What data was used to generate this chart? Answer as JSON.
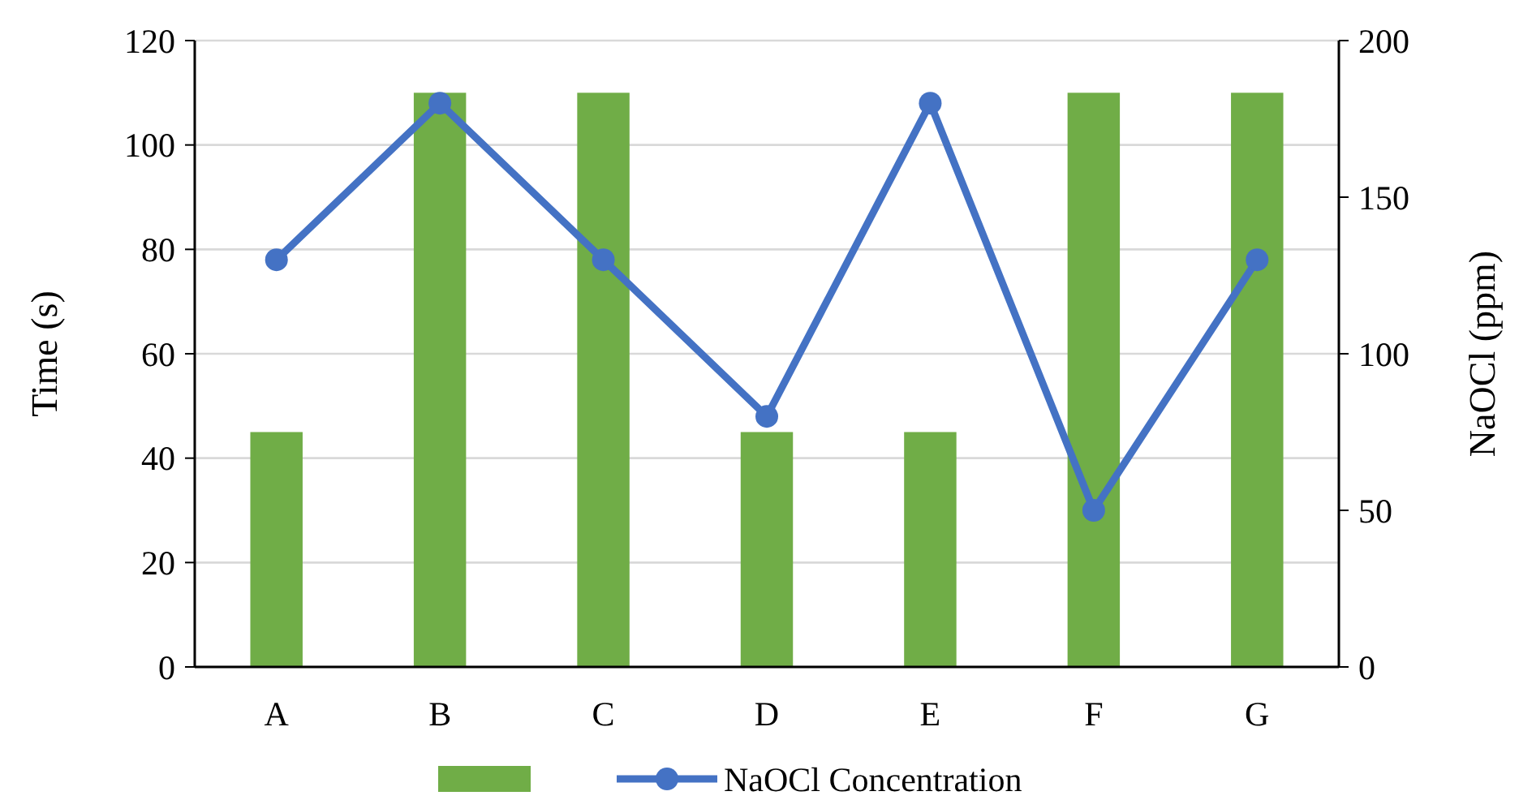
{
  "chart_data": {
    "type": "bar",
    "categories": [
      "A",
      "B",
      "C",
      "D",
      "E",
      "F",
      "G"
    ],
    "series": [
      {
        "color": "#70ad47",
        "values": [
          45,
          110,
          110,
          45,
          45,
          110,
          110
        ]
      },
      {
        "type": "line",
        "name": "NaOCl Concentration",
        "color": "#4472c4",
        "axis": "y2",
        "marker": "circle",
        "values": [
          130,
          180,
          130,
          80,
          180,
          50,
          130
        ]
      }
    ],
    "ylabel": "Time (s)",
    "y2label": "NaOCl (ppm)",
    "ylim": [
      0,
      120
    ],
    "yticks": [
      0,
      20,
      40,
      60,
      80,
      100,
      120
    ],
    "y2lim": [
      0,
      200
    ],
    "y2ticks": [
      0,
      50,
      100,
      150,
      200
    ],
    "grid": "y",
    "legend": "bottom"
  }
}
